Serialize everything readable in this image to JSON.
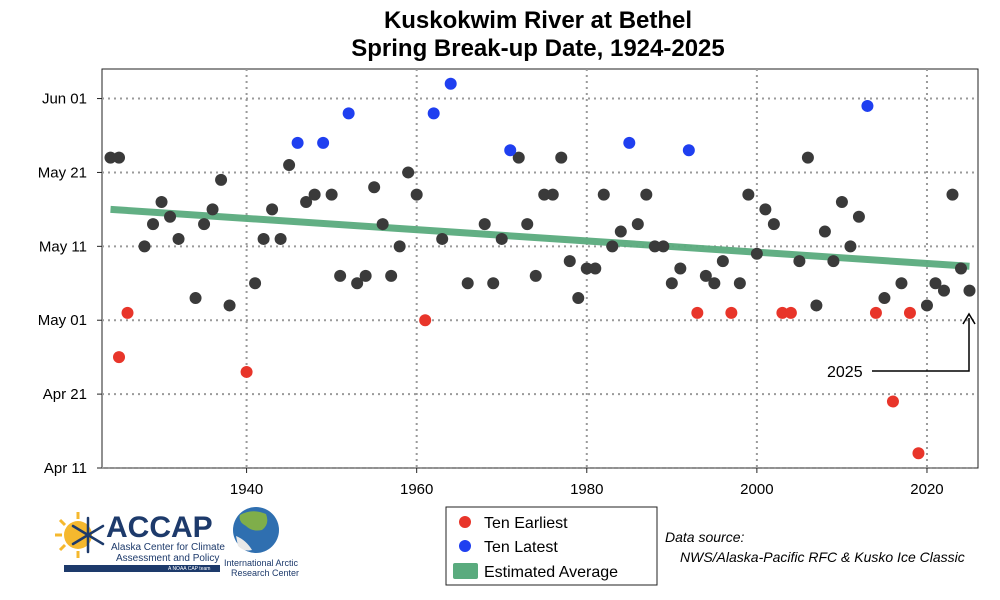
{
  "title_line1": "Kuskokwim River at Bethel",
  "title_line2": "Spring Break-up Date, 1924-2025",
  "legend": {
    "earliest": "Ten Earliest",
    "latest": "Ten Latest",
    "average": "Estimated Average"
  },
  "source": {
    "line1": "Data source:",
    "line2": "NWS/Alaska-Pacific RFC & Kusko Ice Classic"
  },
  "logos": {
    "accap_name": "ACCAP",
    "accap_line1": "Alaska Center for Climate",
    "accap_line2": "Assessment and Policy",
    "accap_tag": "A NOAA CAP team",
    "iarc_line1": "International Arctic",
    "iarc_line2": "Research Center"
  },
  "annotation": "2025",
  "colors": {
    "normal": "#3a3a3a",
    "earliest": "#e8352a",
    "latest": "#1f3ff0",
    "average": "#5aab7e",
    "grid": "#9a9a9a"
  },
  "chart_data": {
    "type": "scatter",
    "title": "Kuskokwim River at Bethel Spring Break-up Date, 1924-2025",
    "xlabel": "",
    "ylabel": "",
    "xlim": [
      1923,
      2026
    ],
    "ylim": [
      101,
      155
    ],
    "x_ticks": [
      1940,
      1960,
      1980,
      2000,
      2020
    ],
    "y_ticks": [
      {
        "value": 101,
        "label": "Apr 11"
      },
      {
        "value": 111,
        "label": "Apr 21"
      },
      {
        "value": 121,
        "label": "May 01"
      },
      {
        "value": 131,
        "label": "May 11"
      },
      {
        "value": 141,
        "label": "May 21"
      },
      {
        "value": 151,
        "label": "Jun 01"
      }
    ],
    "grid": true,
    "legend_position": "bottom-center",
    "series": [
      {
        "name": "Ten Earliest",
        "category": "earliest",
        "points": [
          [
            1925,
            116
          ],
          [
            1926,
            122
          ],
          [
            1940,
            114
          ],
          [
            1961,
            121
          ],
          [
            1993,
            122
          ],
          [
            1997,
            122
          ],
          [
            2003,
            122
          ],
          [
            2004,
            122
          ],
          [
            2014,
            122
          ],
          [
            2016,
            110
          ],
          [
            2018,
            122
          ],
          [
            2019,
            103
          ]
        ]
      },
      {
        "name": "Ten Latest",
        "category": "latest",
        "points": [
          [
            1946,
            145
          ],
          [
            1949,
            145
          ],
          [
            1952,
            149
          ],
          [
            1962,
            149
          ],
          [
            1964,
            153
          ],
          [
            1971,
            144
          ],
          [
            1985,
            145
          ],
          [
            1992,
            144
          ],
          [
            2013,
            150
          ]
        ]
      },
      {
        "category": "normal",
        "points": [
          [
            1924,
            143
          ],
          [
            1925,
            143
          ],
          [
            1928,
            131
          ],
          [
            1929,
            134
          ],
          [
            1930,
            137
          ],
          [
            1931,
            135
          ],
          [
            1932,
            132
          ],
          [
            1934,
            124
          ],
          [
            1935,
            134
          ],
          [
            1936,
            136
          ],
          [
            1937,
            140
          ],
          [
            1938,
            123
          ],
          [
            1941,
            126
          ],
          [
            1942,
            132
          ],
          [
            1943,
            136
          ],
          [
            1944,
            132
          ],
          [
            1945,
            142
          ],
          [
            1947,
            137
          ],
          [
            1948,
            138
          ],
          [
            1950,
            138
          ],
          [
            1951,
            127
          ],
          [
            1953,
            126
          ],
          [
            1954,
            127
          ],
          [
            1955,
            139
          ],
          [
            1956,
            134
          ],
          [
            1957,
            127
          ],
          [
            1958,
            131
          ],
          [
            1959,
            141
          ],
          [
            1960,
            138
          ],
          [
            1963,
            132
          ],
          [
            1966,
            126
          ],
          [
            1968,
            134
          ],
          [
            1969,
            126
          ],
          [
            1970,
            132
          ],
          [
            1972,
            143
          ],
          [
            1973,
            134
          ],
          [
            1974,
            127
          ],
          [
            1975,
            138
          ],
          [
            1976,
            138
          ],
          [
            1977,
            143
          ],
          [
            1978,
            129
          ],
          [
            1979,
            124
          ],
          [
            1980,
            128
          ],
          [
            1981,
            128
          ],
          [
            1982,
            138
          ],
          [
            1983,
            131
          ],
          [
            1984,
            133
          ],
          [
            1986,
            134
          ],
          [
            1987,
            138
          ],
          [
            1988,
            131
          ],
          [
            1989,
            131
          ],
          [
            1990,
            126
          ],
          [
            1991,
            128
          ],
          [
            1994,
            127
          ],
          [
            1995,
            126
          ],
          [
            1996,
            129
          ],
          [
            1998,
            126
          ],
          [
            1999,
            138
          ],
          [
            2000,
            130
          ],
          [
            2001,
            136
          ],
          [
            2002,
            134
          ],
          [
            2005,
            129
          ],
          [
            2006,
            143
          ],
          [
            2007,
            123
          ],
          [
            2008,
            133
          ],
          [
            2009,
            129
          ],
          [
            2010,
            137
          ],
          [
            2011,
            131
          ],
          [
            2012,
            135
          ],
          [
            2015,
            124
          ],
          [
            2017,
            126
          ],
          [
            2020,
            123
          ],
          [
            2021,
            126
          ],
          [
            2022,
            125
          ],
          [
            2023,
            138
          ],
          [
            2024,
            128
          ],
          [
            2025,
            125
          ]
        ]
      }
    ],
    "trend": {
      "name": "Estimated Average",
      "x": [
        1924,
        2025
      ],
      "y": [
        136,
        128.3
      ]
    }
  }
}
